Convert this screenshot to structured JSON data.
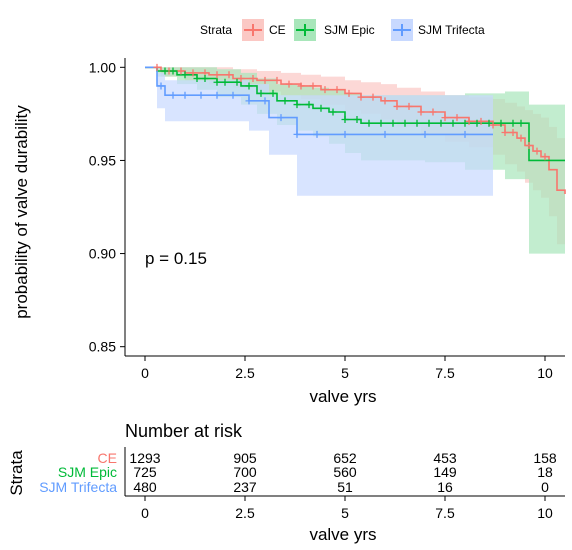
{
  "legend": {
    "title": "Strata",
    "items": [
      {
        "label": "CE",
        "color": "#F8766D",
        "fill": "#FBC8C4"
      },
      {
        "label": "SJM Epic",
        "color": "#00BA38",
        "fill": "#A8E6BA"
      },
      {
        "label": "SJM Trifecta",
        "color": "#619CFF",
        "fill": "#C8D9FF"
      }
    ]
  },
  "chart_data": [
    {
      "type": "line",
      "subtype": "kaplan-meier step survival curves with confidence bands",
      "xlabel": "valve yrs",
      "ylabel": "probability of valve durability",
      "xlim": [
        -0.5,
        10.5
      ],
      "ylim": [
        0.845,
        1.005
      ],
      "xticks": [
        0,
        2.5,
        5,
        7.5,
        10
      ],
      "xtick_labels": [
        "0",
        "2.5",
        "5",
        "7.5",
        "10"
      ],
      "yticks": [
        0.85,
        0.9,
        0.95,
        1.0
      ],
      "ytick_labels": [
        "0.85",
        "0.90",
        "0.95",
        "1.00"
      ],
      "grid": false,
      "legend_position": "top",
      "annotation": "p = 0.15",
      "series": [
        {
          "name": "CE",
          "color": "#F8766D",
          "x": [
            0,
            0.4,
            1.0,
            1.6,
            2.2,
            2.8,
            3.4,
            3.9,
            4.4,
            5.0,
            5.4,
            5.9,
            6.3,
            6.9,
            7.5,
            8.1,
            8.7,
            9.0,
            9.3,
            9.5,
            9.7,
            9.9,
            10.1,
            10.3,
            10.5
          ],
          "y": [
            1.0,
            0.998,
            0.997,
            0.996,
            0.994,
            0.993,
            0.991,
            0.99,
            0.988,
            0.986,
            0.984,
            0.982,
            0.979,
            0.976,
            0.973,
            0.971,
            0.969,
            0.965,
            0.962,
            0.958,
            0.955,
            0.952,
            0.945,
            0.934,
            0.932
          ],
          "lower": [
            1.0,
            0.995,
            0.993,
            0.991,
            0.989,
            0.987,
            0.985,
            0.983,
            0.98,
            0.977,
            0.975,
            0.972,
            0.968,
            0.964,
            0.96,
            0.957,
            0.953,
            0.948,
            0.944,
            0.938,
            0.934,
            0.93,
            0.92,
            0.905,
            0.9
          ],
          "upper": [
            1.0,
            1.0,
            1.0,
            1.0,
            0.999,
            0.998,
            0.997,
            0.996,
            0.995,
            0.993,
            0.992,
            0.991,
            0.989,
            0.987,
            0.985,
            0.984,
            0.983,
            0.981,
            0.979,
            0.977,
            0.975,
            0.973,
            0.968,
            0.962,
            0.96
          ]
        },
        {
          "name": "SJM Epic",
          "color": "#00BA38",
          "x": [
            0,
            0.3,
            0.8,
            1.3,
            1.8,
            2.4,
            2.8,
            3.3,
            3.8,
            4.2,
            4.6,
            5.0,
            5.4,
            6.0,
            7.0,
            8.0,
            9.0,
            9.6,
            10.5
          ],
          "y": [
            1.0,
            0.998,
            0.996,
            0.994,
            0.992,
            0.99,
            0.986,
            0.982,
            0.98,
            0.978,
            0.976,
            0.972,
            0.97,
            0.97,
            0.97,
            0.97,
            0.97,
            0.95,
            0.95
          ],
          "lower": [
            1.0,
            0.995,
            0.991,
            0.988,
            0.984,
            0.98,
            0.975,
            0.969,
            0.966,
            0.963,
            0.959,
            0.954,
            0.95,
            0.95,
            0.949,
            0.945,
            0.94,
            0.9,
            0.886
          ],
          "upper": [
            1.0,
            1.0,
            1.0,
            1.0,
            0.999,
            0.997,
            0.994,
            0.991,
            0.99,
            0.989,
            0.988,
            0.986,
            0.985,
            0.985,
            0.985,
            0.986,
            0.987,
            0.98,
            0.98
          ]
        },
        {
          "name": "SJM Trifecta",
          "color": "#619CFF",
          "x": [
            0,
            0.3,
            0.5,
            2.6,
            3.1,
            3.8,
            4.0,
            8.7
          ],
          "y": [
            1.0,
            0.99,
            0.985,
            0.982,
            0.973,
            0.964,
            0.964,
            0.964
          ],
          "lower": [
            1.0,
            0.978,
            0.971,
            0.966,
            0.953,
            0.931,
            0.931,
            0.931
          ],
          "upper": [
            1.0,
            0.997,
            0.993,
            0.991,
            0.985,
            0.985,
            0.985,
            0.985
          ]
        }
      ],
      "censor_marks": {
        "CE": [
          0.3,
          0.6,
          0.9,
          1.2,
          1.5,
          1.8,
          2.1,
          2.4,
          2.7,
          3.0,
          3.3,
          3.6,
          3.9,
          4.2,
          4.5,
          4.8,
          5.1,
          5.4,
          5.7,
          6.0,
          6.3,
          6.6,
          6.9,
          7.2,
          7.5,
          7.8,
          8.1,
          8.4,
          8.7,
          9.0,
          9.2,
          9.4,
          9.6,
          9.8,
          10.0
        ],
        "SJM Epic": [
          0.5,
          0.7,
          1.0,
          1.3,
          1.5,
          1.8,
          2.0,
          2.3,
          2.6,
          2.9,
          3.2,
          3.5,
          3.8,
          4.1,
          4.4,
          4.7,
          5.0,
          5.3,
          5.6,
          5.9,
          6.2,
          6.5,
          6.8,
          7.1,
          7.4,
          7.7,
          8.0,
          8.3,
          8.6,
          8.9,
          9.2,
          9.4
        ],
        "SJM Trifecta": [
          0.4,
          0.7,
          1.0,
          1.4,
          1.8,
          2.2,
          2.6,
          3.0,
          3.4,
          3.8,
          4.3,
          5.0,
          6.0,
          7.0,
          8.0
        ]
      }
    },
    {
      "type": "table",
      "title": "Number at risk",
      "ylabel": "Strata",
      "xlabel": "valve yrs",
      "xticks": [
        0,
        2.5,
        5,
        7.5,
        10
      ],
      "xtick_labels": [
        "0",
        "2.5",
        "5",
        "7.5",
        "10"
      ],
      "rows": [
        {
          "name": "CE",
          "color": "#F8766D",
          "values": [
            "1293",
            "905",
            "652",
            "453",
            "158"
          ]
        },
        {
          "name": "SJM Epic",
          "color": "#00BA38",
          "values": [
            "725",
            "700",
            "560",
            "149",
            "18"
          ]
        },
        {
          "name": "SJM Trifecta",
          "color": "#619CFF",
          "values": [
            "480",
            "237",
            "51",
            "16",
            "0"
          ]
        }
      ]
    }
  ]
}
